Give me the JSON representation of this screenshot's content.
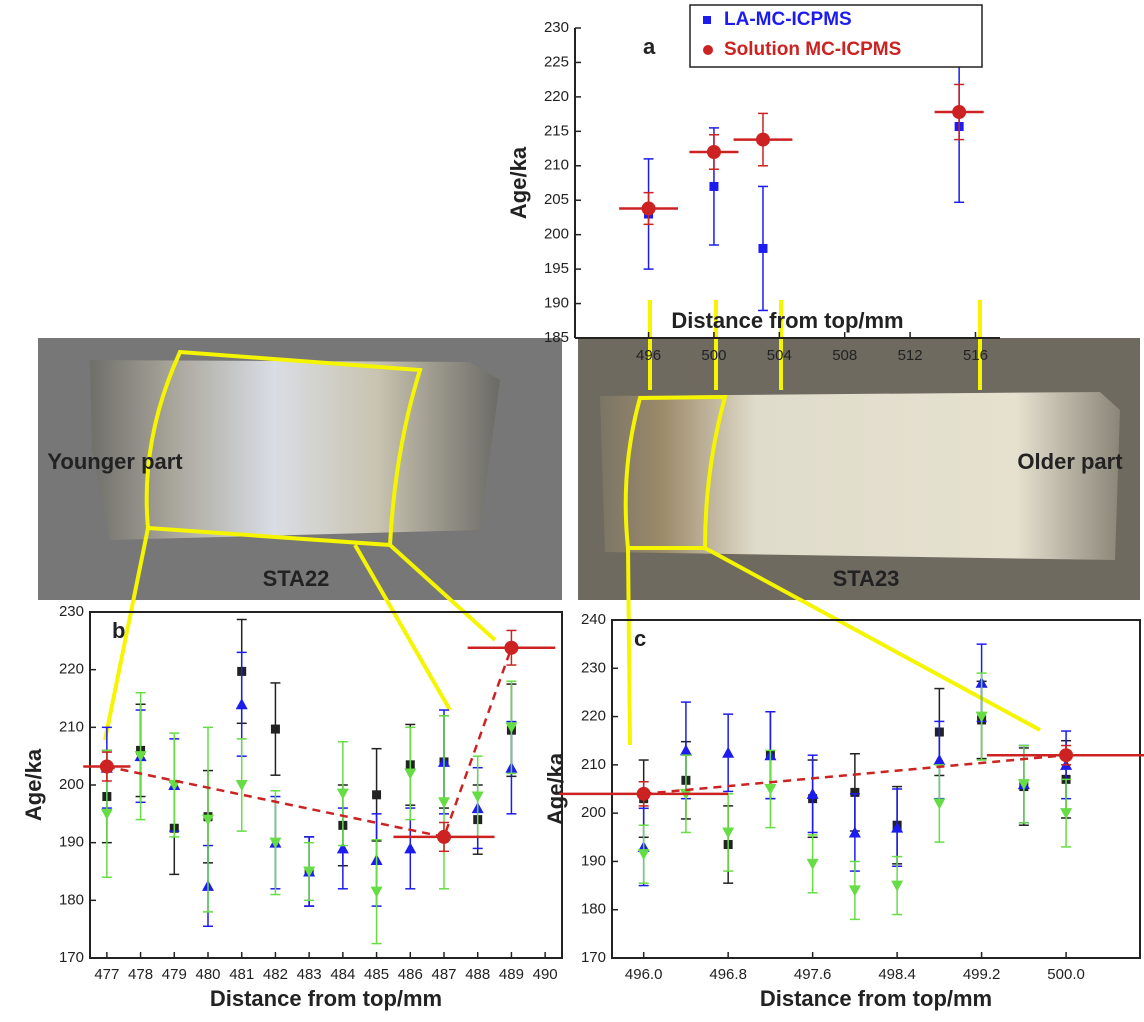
{
  "chart_data": [
    {
      "type": "scatter",
      "panel": "a",
      "xlabel": "Distance from top/mm",
      "ylabel": "Age/ka",
      "x": [
        496,
        500,
        503,
        515
      ],
      "xlim": [
        491.5,
        517.5
      ],
      "xticks": [
        496,
        500,
        504,
        508,
        512,
        516
      ],
      "ylim": [
        185,
        230
      ],
      "yticks": [
        185,
        190,
        195,
        200,
        205,
        210,
        215,
        220,
        225,
        230
      ],
      "legend": "top",
      "series": [
        {
          "name": "LA-MC-ICPMS",
          "color": "#1c1cf0",
          "marker": "square",
          "values": [
            203,
            207,
            198,
            215.7
          ],
          "errors": [
            8,
            8.5,
            9,
            11
          ]
        },
        {
          "name": "Solution MC-ICPMS",
          "color": "#cc2222",
          "marker": "circle",
          "values": [
            203.8,
            212,
            213.8,
            217.8
          ],
          "errors": [
            2.3,
            2.5,
            3.8,
            4
          ],
          "xerrors": [
            1.8,
            1.5,
            1.8,
            1.5
          ]
        }
      ]
    },
    {
      "type": "scatter",
      "panel": "b",
      "xlabel": "Distance from top/mm",
      "ylabel": "Age/ka",
      "x": [
        477,
        478,
        479,
        480,
        481,
        482,
        483,
        484,
        485,
        486,
        487,
        488,
        489
      ],
      "xlim": [
        476.5,
        490.5
      ],
      "xticks": [
        477,
        478,
        479,
        480,
        481,
        482,
        483,
        484,
        485,
        486,
        487,
        488,
        489,
        490
      ],
      "ylim": [
        170,
        230
      ],
      "yticks": [
        170,
        180,
        190,
        200,
        210,
        220,
        230
      ],
      "series": [
        {
          "color": "#222222",
          "marker": "square",
          "values": [
            198,
            206,
            192.5,
            194.5,
            219.7,
            209.7,
            185,
            193,
            198.3,
            203.5,
            204,
            194,
            209.5
          ],
          "errors": [
            8,
            8,
            8,
            8,
            9,
            8,
            6,
            7,
            8,
            7,
            8,
            6,
            8
          ]
        },
        {
          "color": "#1c1cf0",
          "marker": "triangle",
          "values": [
            203,
            205,
            200,
            182.5,
            214,
            190,
            185,
            189,
            187,
            189,
            204,
            196,
            203
          ],
          "errors": [
            7,
            8,
            8,
            7,
            9,
            8,
            6,
            7,
            8,
            7,
            9,
            7,
            8
          ]
        },
        {
          "color": "#66dd44",
          "marker": "triangle-down",
          "values": [
            195,
            205,
            200,
            194,
            200,
            190,
            185,
            198.5,
            181.5,
            202,
            197,
            198,
            210
          ],
          "errors": [
            11,
            11,
            9,
            16,
            8,
            9,
            5,
            9,
            9,
            8,
            15,
            7,
            8
          ]
        },
        {
          "color": "#cc2222",
          "marker": "circle",
          "line": "dashed",
          "x": [
            477,
            487,
            489
          ],
          "values": [
            203.2,
            191,
            223.8
          ],
          "errors": [
            2.5,
            2.5,
            3
          ],
          "xerrors": [
            0.7,
            1.5,
            1.3
          ]
        }
      ]
    },
    {
      "type": "scatter",
      "panel": "c",
      "xlabel": "Distance from top/mm",
      "ylabel": "Age/ka",
      "x": [
        496,
        496.4,
        496.8,
        497.2,
        497.6,
        498,
        498.4,
        498.8,
        499.2,
        499.6,
        500
      ],
      "xlim": [
        495.7,
        500.7
      ],
      "xticks": [
        {
          "value": 496,
          "label": "496.0"
        },
        496.8,
        497.6,
        498.4,
        499.2,
        {
          "value": 500,
          "label": "500.0"
        }
      ],
      "ylim": [
        170,
        240
      ],
      "yticks": [
        170,
        180,
        190,
        200,
        210,
        220,
        230,
        240
      ],
      "series": [
        {
          "color": "#222222",
          "marker": "square",
          "values": [
            203,
            206.8,
            193.5,
            212,
            203,
            204.3,
            197.5,
            216.8,
            219.3,
            205.5,
            207
          ],
          "errors": [
            8,
            8,
            8,
            9,
            8,
            8,
            8,
            9,
            8,
            8,
            8
          ]
        },
        {
          "color": "#1c1cf0",
          "marker": "triangle",
          "values": [
            193,
            213,
            212.5,
            212,
            204,
            196,
            197,
            211,
            227,
            206,
            210
          ],
          "errors": [
            8,
            10,
            8,
            9,
            8,
            8,
            8,
            8,
            8,
            8,
            7
          ]
        },
        {
          "color": "#66dd44",
          "marker": "triangle-down",
          "values": [
            191.5,
            204,
            196,
            205,
            189.5,
            184,
            185,
            202,
            220,
            206,
            200
          ],
          "errors": [
            6,
            8,
            8,
            8,
            6,
            6,
            6,
            8,
            9,
            8,
            7
          ]
        },
        {
          "color": "#cc2222",
          "marker": "circle",
          "line": "dashed",
          "x": [
            496,
            500
          ],
          "values": [
            204,
            212
          ],
          "errors": [
            2.5,
            2
          ],
          "xerrors": [
            0.8,
            0.75
          ]
        }
      ]
    }
  ],
  "photo_labels": {
    "left": "Younger part",
    "right": "Older part",
    "left_sample": "STA22",
    "right_sample": "STA23"
  }
}
